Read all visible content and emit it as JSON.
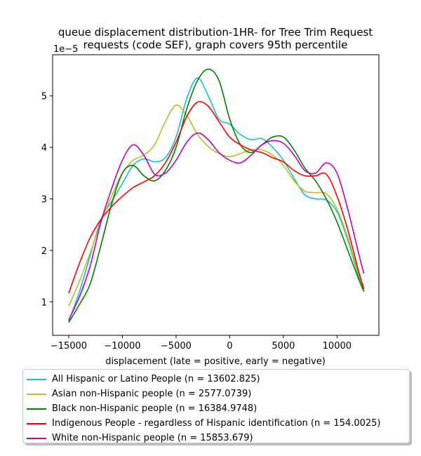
{
  "chart_data": {
    "type": "line",
    "title": "queue displacement distribution-1HR-  for Tree Trim Request\nrequests (code SEF), graph covers 95th percentile",
    "xlabel": "displacement (late = positive, early = negative)",
    "ylabel": "",
    "y_offset_label": "1e−5",
    "xlim": [
      -16500,
      13900
    ],
    "ylim": [
      0.35,
      5.8
    ],
    "xticks": [
      -15000,
      -10000,
      -5000,
      0,
      5000,
      10000
    ],
    "yticks": [
      1,
      2,
      3,
      4,
      5
    ],
    "grid": false,
    "legend_placement": "below",
    "series": [
      {
        "name": "All Hispanic or Latino People (n = 13602.825)",
        "color": "#17becf",
        "x": [
          -15000,
          -14000,
          -13000,
          -12000,
          -11000,
          -10000,
          -9000,
          -8000,
          -7000,
          -6000,
          -5000,
          -4000,
          -3000,
          -2000,
          -1000,
          0,
          1000,
          2000,
          3000,
          4000,
          5000,
          6000,
          7000,
          8000,
          9000,
          10000,
          11000,
          12000,
          12500
        ],
        "y": [
          0.62,
          1.2,
          1.9,
          2.6,
          2.95,
          3.3,
          3.65,
          3.78,
          3.72,
          3.8,
          4.2,
          4.95,
          5.35,
          5.0,
          4.55,
          4.45,
          4.25,
          4.15,
          4.17,
          4.0,
          3.75,
          3.4,
          3.08,
          3.0,
          2.98,
          2.75,
          2.2,
          1.5,
          1.2
        ]
      },
      {
        "name": "Asian non-Hispanic people (n = 2577.0739)",
        "color": "#bcbd22",
        "x": [
          -15000,
          -14000,
          -13000,
          -12000,
          -11000,
          -10000,
          -9000,
          -8000,
          -7000,
          -6000,
          -5000,
          -4000,
          -3000,
          -2000,
          -1000,
          0,
          1000,
          2000,
          3000,
          4000,
          5000,
          6000,
          7000,
          8000,
          9000,
          10000,
          11000,
          12000,
          12500
        ],
        "y": [
          0.92,
          1.4,
          1.95,
          2.55,
          3.05,
          3.5,
          3.75,
          3.85,
          4.05,
          4.5,
          4.82,
          4.62,
          4.25,
          4.02,
          3.88,
          3.82,
          3.88,
          3.95,
          3.95,
          3.85,
          3.65,
          3.35,
          3.15,
          3.12,
          3.1,
          2.8,
          2.25,
          1.55,
          1.3
        ]
      },
      {
        "name": "Black non-Hispanic people (n = 16384.9748)",
        "color": "#008000",
        "x": [
          -15000,
          -14000,
          -13000,
          -12000,
          -11000,
          -10000,
          -9000,
          -8000,
          -7000,
          -6000,
          -5000,
          -4000,
          -3000,
          -2000,
          -1000,
          0,
          1000,
          2000,
          3000,
          4000,
          5000,
          6000,
          7000,
          8000,
          9000,
          10000,
          11000,
          12000,
          12500
        ],
        "y": [
          0.6,
          0.95,
          1.35,
          2.1,
          2.9,
          3.5,
          3.65,
          3.45,
          3.35,
          3.55,
          4.0,
          4.75,
          5.3,
          5.52,
          5.3,
          4.55,
          4.05,
          3.9,
          4.05,
          4.2,
          4.2,
          3.95,
          3.6,
          3.35,
          3.0,
          2.55,
          2.0,
          1.45,
          1.2
        ]
      },
      {
        "name": "Indigenous People - regardless of Hispanic identification (n = 154.0025)",
        "color": "#ff0000",
        "x": [
          -15000,
          -14000,
          -13000,
          -12000,
          -11000,
          -10000,
          -9000,
          -8000,
          -7000,
          -6000,
          -5000,
          -4000,
          -3000,
          -2000,
          -1000,
          0,
          1000,
          2000,
          3000,
          4000,
          5000,
          6000,
          7000,
          8000,
          9000,
          10000,
          11000,
          12000,
          12500
        ],
        "y": [
          1.17,
          1.75,
          2.25,
          2.6,
          2.85,
          3.05,
          3.22,
          3.33,
          3.45,
          3.7,
          4.1,
          4.6,
          4.88,
          4.8,
          4.5,
          4.2,
          4.05,
          3.95,
          3.9,
          3.8,
          3.72,
          3.55,
          3.45,
          3.45,
          3.48,
          3.05,
          2.4,
          1.6,
          1.25
        ]
      },
      {
        "name": "White non-Hispanic people (n = 15853.679)",
        "color": "#bf00bf",
        "x": [
          -15000,
          -14000,
          -13000,
          -12000,
          -11000,
          -10000,
          -9000,
          -8000,
          -7000,
          -6000,
          -5000,
          -4000,
          -3000,
          -2000,
          -1000,
          0,
          1000,
          2000,
          3000,
          4000,
          5000,
          6000,
          7000,
          8000,
          9000,
          10000,
          11000,
          12000,
          12500
        ],
        "y": [
          0.65,
          1.1,
          1.7,
          2.55,
          3.2,
          3.75,
          4.05,
          3.85,
          3.48,
          3.5,
          3.75,
          4.1,
          4.28,
          4.15,
          3.9,
          3.75,
          3.7,
          3.85,
          4.05,
          4.13,
          4.08,
          3.85,
          3.55,
          3.5,
          3.7,
          3.5,
          2.8,
          1.95,
          1.55
        ]
      }
    ]
  }
}
